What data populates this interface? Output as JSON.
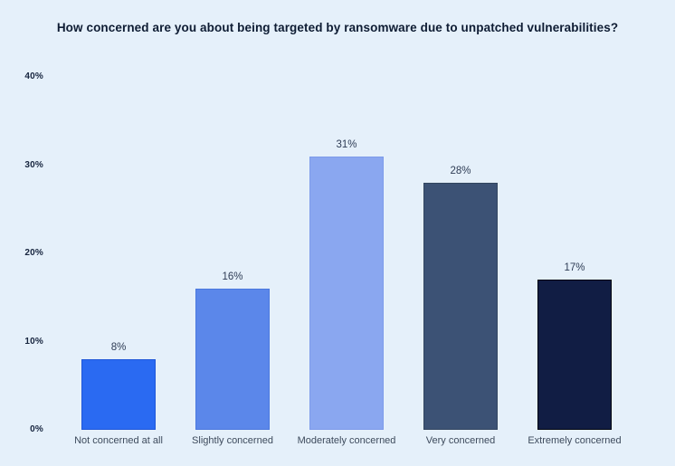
{
  "title": "How concerned are you about being targeted by ransomware due to unpatched vulnerabilities?",
  "chart_data": {
    "type": "bar",
    "title": "How concerned are you about being targeted by ransomware due to unpatched vulnerabilities?",
    "categories": [
      "Not concerned at all",
      "Slightly concerned",
      "Moderately concerned",
      "Very concerned",
      "Extremely concerned"
    ],
    "values": [
      8,
      16,
      31,
      28,
      17
    ],
    "value_labels": [
      "8%",
      "16%",
      "31%",
      "28%",
      "17%"
    ],
    "xlabel": "",
    "ylabel": "",
    "ylim": [
      0,
      40
    ],
    "ytick_labels": [
      "0%",
      "10%",
      "20%",
      "30%",
      "40%"
    ],
    "grid": false,
    "legend": "none",
    "bar_colors": [
      "#2a6af2",
      "#5b87ea",
      "#8aa7f0",
      "#3c5275",
      "#111d44"
    ],
    "bar_border_colors": [
      "#1f57d8",
      "#4b78de",
      "#7d9bea",
      "#32455f",
      "#02050f"
    ]
  },
  "theme": {
    "background": "#e5f0fa",
    "title_color": "#0e1c33",
    "tick_color": "#16243e",
    "value_label_color": "#2e3c55",
    "category_label_color": "#3d4a5c"
  }
}
